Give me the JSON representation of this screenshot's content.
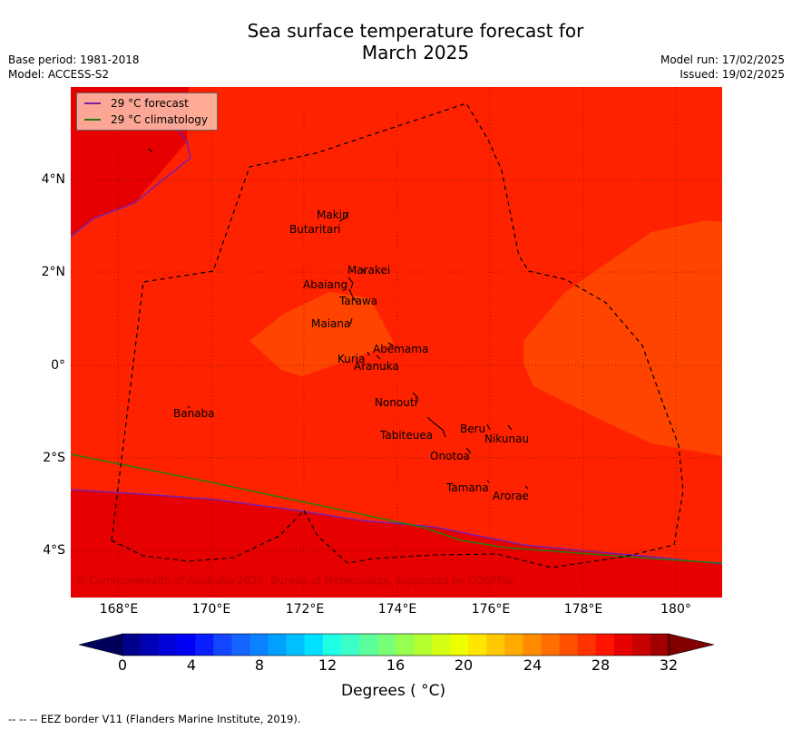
{
  "title_line1": "Sea surface temperature forecast for",
  "title_line2": "March 2025",
  "meta_left": [
    "Base period: 1981-2018",
    "Model: ACCESS-S2"
  ],
  "meta_right": [
    "Model run: 17/02/2025",
    "Issued: 19/02/2025"
  ],
  "legend": {
    "forecast": {
      "label": "29 °C  forecast",
      "color": "#7a1fa8"
    },
    "climatology": {
      "label": "29 °C  climatology",
      "color": "#2b7a0b"
    }
  },
  "x_ticks": [
    "168°E",
    "170°E",
    "172°E",
    "174°E",
    "176°E",
    "178°E",
    "180°"
  ],
  "y_ticks": [
    "4°N",
    "2°N",
    "0°",
    "2°S",
    "4°S"
  ],
  "islands": [
    "Makin",
    "Butaritari",
    "Marakei",
    "Abaiang",
    "Tarawa",
    "Maiana",
    "Abemama",
    "Kuria",
    "Aranuka",
    "Nonouti",
    "Banaba",
    "Tabiteuea",
    "Beru",
    "Nikunau",
    "Onotoa",
    "Tamana",
    "Arorae"
  ],
  "copyright": "© Commonwealth of Australia 2025, Bureau of Meteorology, supported by COSPPac",
  "colorbar": {
    "ticks": [
      "0",
      "4",
      "8",
      "12",
      "16",
      "20",
      "24",
      "28",
      "32"
    ],
    "label": "Degrees ( °C)",
    "colors": [
      "#00008c",
      "#0000b4",
      "#0000d8",
      "#0000f5",
      "#0a1eff",
      "#1446ff",
      "#1464ff",
      "#0a82ff",
      "#00a0ff",
      "#00c0ff",
      "#00e0ff",
      "#1effe6",
      "#3cffc8",
      "#5aff9c",
      "#78ff78",
      "#96ff50",
      "#b4ff30",
      "#d2ff14",
      "#eeff00",
      "#ffe600",
      "#ffc800",
      "#ffaa00",
      "#ff8c00",
      "#ff6e00",
      "#ff5000",
      "#ff3200",
      "#ff1400",
      "#e60000",
      "#c80000",
      "#a00000"
    ],
    "under_color": "#00005a",
    "over_color": "#800000"
  },
  "map_colors": {
    "sst_29_30": "#ff2200",
    "sst_28_29": "#ff4400",
    "sst_30_31": "#e60000"
  },
  "footnote": "--  --  -- EEZ border V11 (Flanders Marine Institute, 2019)."
}
